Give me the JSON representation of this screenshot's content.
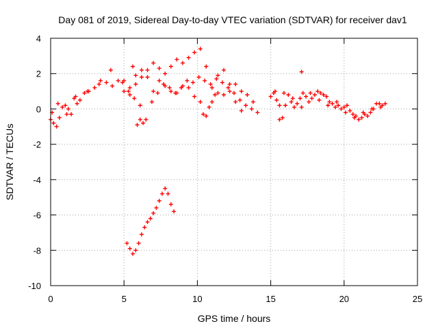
{
  "chart_data": {
    "type": "scatter",
    "title": "Day 081 of 2019, Sidereal Day-to-day VTEC variation (SDTVAR) for receiver dav1",
    "xlabel": "GPS time / hours",
    "ylabel": "SDTVAR / TECUs",
    "xlim": [
      0,
      25
    ],
    "ylim": [
      -10,
      4
    ],
    "x_ticks": [
      0,
      5,
      10,
      15,
      20,
      25
    ],
    "y_ticks": [
      -10,
      -8,
      -6,
      -4,
      -2,
      0,
      2,
      4
    ],
    "x_tick_labels": [
      "0",
      "5",
      "10",
      "15",
      "20",
      "25"
    ],
    "y_tick_labels": [
      "-10",
      "-8",
      "-6",
      "-4",
      "-2",
      "0",
      "2",
      "4"
    ],
    "grid": true,
    "marker": "+",
    "series": [
      {
        "name": "SDTVAR",
        "color": "#ff0000",
        "x": [
          0.0,
          0.2,
          0.4,
          0.6,
          0.8,
          1.0,
          1.2,
          1.4,
          1.6,
          1.8,
          2.0,
          2.3,
          2.6,
          3.0,
          3.4,
          3.8,
          4.2,
          4.6,
          5.0,
          5.4,
          5.8,
          6.2,
          6.6,
          7.0,
          7.4,
          7.8,
          8.2,
          8.6,
          9.0,
          9.4,
          9.8,
          10.2,
          10.6,
          11.0,
          11.4,
          11.8,
          12.2,
          12.6,
          13.0,
          13.4,
          13.8,
          14.1,
          0.1,
          0.5,
          1.1,
          1.7,
          2.5,
          3.3,
          4.1,
          4.9,
          5.3,
          5.7,
          6.1,
          6.5,
          6.9,
          7.3,
          7.7,
          8.1,
          8.5,
          8.9,
          9.3,
          9.7,
          10.1,
          10.5,
          10.9,
          11.3,
          11.7,
          12.1,
          12.5,
          12.9,
          13.3,
          13.7,
          5.0,
          5.4,
          5.8,
          6.2,
          6.6,
          7.0,
          7.4,
          7.8,
          8.2,
          8.6,
          9.0,
          9.4,
          9.8,
          10.2,
          10.4,
          10.6,
          10.8,
          11.0,
          11.2,
          11.4,
          11.8,
          12.2,
          12.6,
          13.0,
          5.9,
          6.1,
          6.3,
          5.6,
          5.2,
          5.4,
          5.6,
          5.8,
          6.0,
          6.2,
          6.4,
          6.6,
          6.8,
          7.0,
          7.2,
          7.4,
          7.6,
          7.8,
          8.0,
          8.2,
          8.4,
          15.0,
          15.2,
          15.4,
          15.6,
          15.8,
          16.0,
          16.2,
          16.4,
          16.6,
          16.8,
          17.0,
          17.2,
          17.4,
          17.6,
          17.8,
          18.0,
          18.2,
          18.4,
          18.6,
          18.8,
          19.0,
          19.2,
          19.4,
          19.6,
          19.8,
          20.0,
          20.2,
          20.4,
          20.6,
          20.8,
          21.0,
          21.2,
          21.4,
          21.6,
          21.8,
          22.0,
          22.2,
          22.4,
          22.6,
          22.8,
          15.3,
          15.9,
          16.5,
          17.1,
          17.7,
          18.3,
          18.9,
          19.5,
          20.1,
          20.7,
          21.3,
          21.9,
          22.5,
          15.6,
          17.1
        ],
        "y": [
          -0.6,
          -0.8,
          -1.0,
          -0.5,
          0.1,
          0.2,
          0.0,
          -0.3,
          0.6,
          0.3,
          0.5,
          0.9,
          1.0,
          1.2,
          1.6,
          1.5,
          1.3,
          1.6,
          1.0,
          0.8,
          1.4,
          1.8,
          2.2,
          2.6,
          2.3,
          2.0,
          2.4,
          2.8,
          2.6,
          2.9,
          3.2,
          3.4,
          2.4,
          1.2,
          0.9,
          0.8,
          1.0,
          1.4,
          1.0,
          0.8,
          0.4,
          -0.2,
          -0.2,
          0.3,
          -0.3,
          0.7,
          1.0,
          1.4,
          2.2,
          1.5,
          1.0,
          0.6,
          0.2,
          -0.6,
          0.4,
          0.9,
          1.4,
          1.2,
          0.9,
          1.2,
          1.6,
          1.5,
          1.8,
          1.6,
          1.4,
          1.7,
          1.5,
          1.2,
          0.9,
          0.5,
          0.2,
          0.0,
          1.6,
          1.2,
          1.9,
          2.2,
          1.8,
          1.0,
          1.6,
          1.3,
          1.0,
          0.9,
          1.3,
          1.2,
          0.7,
          0.4,
          -0.3,
          -0.4,
          0.1,
          0.4,
          0.8,
          1.9,
          2.2,
          1.4,
          0.4,
          -0.1,
          -0.9,
          -0.6,
          -0.8,
          2.4,
          -7.6,
          -7.9,
          -8.2,
          -8.0,
          -7.6,
          -7.1,
          -6.7,
          -6.4,
          -6.2,
          -5.9,
          -5.6,
          -5.2,
          -4.8,
          -4.5,
          -4.8,
          -5.4,
          -5.8,
          0.7,
          0.9,
          0.5,
          0.2,
          -0.5,
          0.2,
          0.8,
          0.4,
          0.1,
          0.3,
          0.6,
          0.9,
          0.7,
          0.4,
          0.6,
          0.8,
          1.0,
          0.9,
          0.8,
          0.7,
          0.4,
          0.3,
          0.1,
          0.2,
          0.0,
          0.1,
          0.2,
          -0.1,
          -0.3,
          -0.4,
          -0.6,
          -0.5,
          -0.3,
          -0.4,
          -0.2,
          0.0,
          0.3,
          0.3,
          0.2,
          0.3,
          1.0,
          0.9,
          0.6,
          0.1,
          0.9,
          0.5,
          0.2,
          0.4,
          -0.2,
          -0.5,
          -0.2,
          0.0,
          0.1,
          -0.6,
          2.1
        ]
      }
    ]
  }
}
